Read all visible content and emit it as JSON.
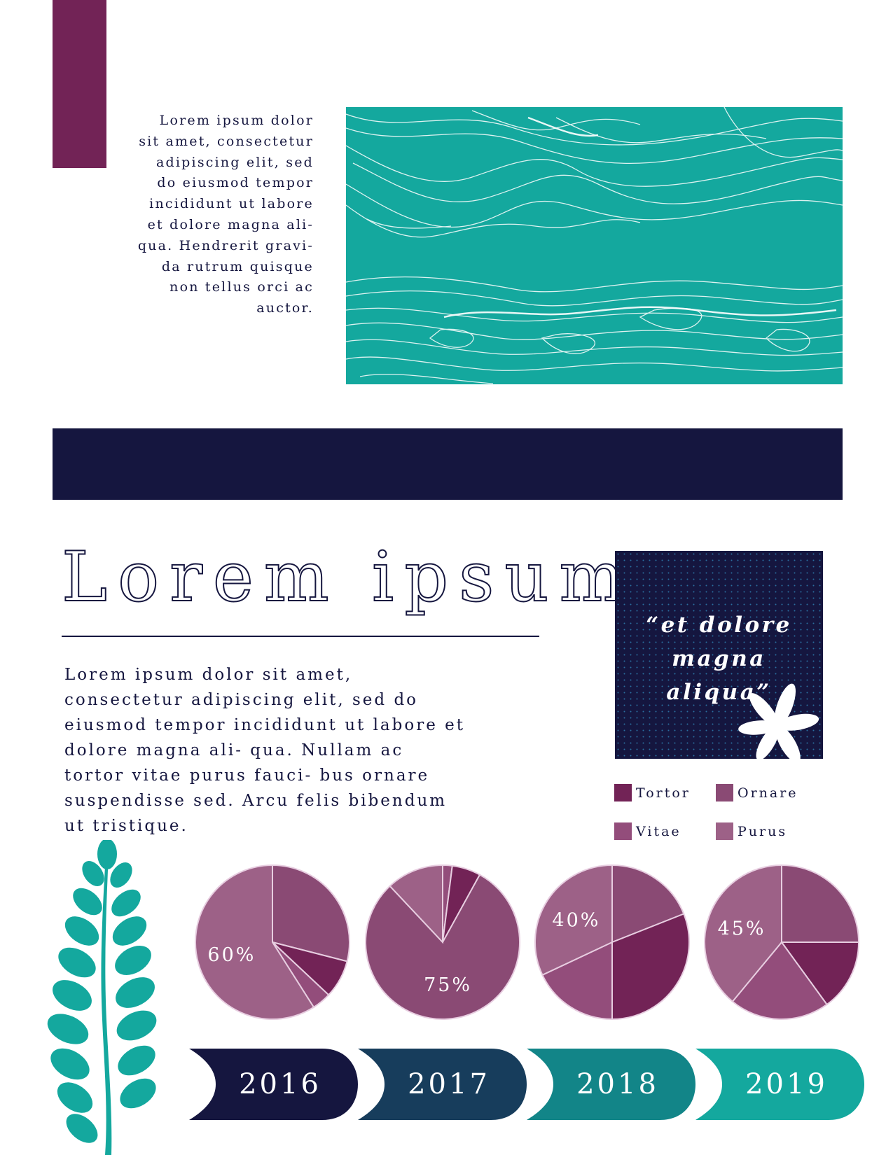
{
  "intro": {
    "text": "Lorem ipsum dolor sit amet, consectetur adipiscing elit, sed do eiusmod tempor incididunt ut labore et dolore magna ali- qua. Hendrerit gravi- da rutrum quisque non tellus orci ac auctor."
  },
  "title": "Lorem ipsum",
  "body": {
    "text": "Lorem ipsum dolor sit amet, consectetur adipiscing elit, sed do eiusmod tempor incididunt ut labore et dolore magna ali- qua. Nullam ac tortor vitae purus fauci- bus ornare suspendisse sed. Arcu felis bibendum ut tristique."
  },
  "quote": {
    "line1": "“et dolore",
    "line2": "magna",
    "line3": "aliqua”"
  },
  "legend": [
    {
      "label": "Tortor",
      "color": "#722356"
    },
    {
      "label": "Ornare",
      "color": "#8a4a74"
    },
    {
      "label": "Vitae",
      "color": "#934d7b"
    },
    {
      "label": "Purus",
      "color": "#9d6187"
    }
  ],
  "colors": {
    "navy": "#15163f",
    "teal": "#14a89e",
    "plum": "#722356"
  },
  "chart_data": {
    "type": "pie",
    "pies": [
      {
        "label": "60%",
        "slices": [
          {
            "name": "Ornare",
            "value": 29
          },
          {
            "name": "Tortor",
            "value": 8
          },
          {
            "name": "Vitae",
            "value": 4
          },
          {
            "name": "Purus",
            "value": 59
          }
        ]
      },
      {
        "label": "75%",
        "slices": [
          {
            "name": "Vitae",
            "value": 2
          },
          {
            "name": "Tortor",
            "value": 6
          },
          {
            "name": "Ornare",
            "value": 80
          },
          {
            "name": "Purus",
            "value": 12
          }
        ]
      },
      {
        "label": "40%",
        "slices": [
          {
            "name": "Ornare",
            "value": 19
          },
          {
            "name": "Tortor",
            "value": 31
          },
          {
            "name": "Vitae",
            "value": 18
          },
          {
            "name": "Purus",
            "value": 32
          }
        ]
      },
      {
        "label": "45%",
        "slices": [
          {
            "name": "Ornare",
            "value": 25
          },
          {
            "name": "Tortor",
            "value": 15
          },
          {
            "name": "Vitae",
            "value": 21
          },
          {
            "name": "Purus",
            "value": 39
          }
        ]
      }
    ]
  },
  "timeline": [
    {
      "year": "2016",
      "color": "#15163f"
    },
    {
      "year": "2017",
      "color": "#173d5c"
    },
    {
      "year": "2018",
      "color": "#128588"
    },
    {
      "year": "2019",
      "color": "#14a89e"
    }
  ]
}
